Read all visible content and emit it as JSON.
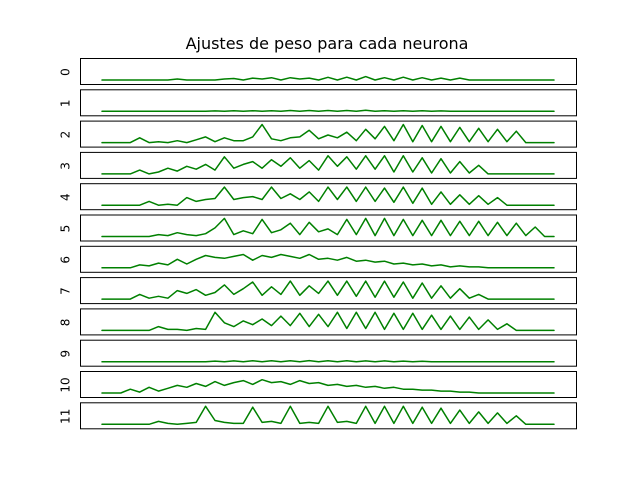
{
  "chart_data": {
    "type": "line",
    "title": "Ajustes de peso para cada neurona",
    "xlabel": "",
    "ylabel": "",
    "x_ticks_shown": false,
    "y_ticks_shown": false,
    "grid": false,
    "legend": "none",
    "line_color": "#008000",
    "x_domain": [
      0,
      1
    ],
    "panels": [
      {
        "label": "0",
        "values": [
          0.0,
          0.0,
          0.0,
          0.0,
          0.0,
          0.0,
          0.0,
          0.0,
          0.05,
          0.0,
          0.0,
          0.0,
          0.0,
          0.05,
          0.08,
          0.0,
          0.1,
          0.05,
          0.12,
          0.0,
          0.12,
          0.05,
          0.1,
          0.0,
          0.14,
          0.0,
          0.15,
          0.0,
          0.18,
          0.0,
          0.12,
          0.0,
          0.15,
          0.0,
          0.12,
          0.0,
          0.1,
          0.0,
          0.1,
          0.0,
          0.0,
          0.0,
          0.0,
          0.0,
          0.0,
          0.0,
          0.0,
          0.0,
          0.0
        ]
      },
      {
        "label": "1",
        "values": [
          0.0,
          0.0,
          0.0,
          0.0,
          0.0,
          0.0,
          0.0,
          0.0,
          0.0,
          0.0,
          0.0,
          0.0,
          0.02,
          0.0,
          0.03,
          0.0,
          0.03,
          0.0,
          0.03,
          0.0,
          0.04,
          0.0,
          0.04,
          0.0,
          0.04,
          0.0,
          0.04,
          0.0,
          0.05,
          0.0,
          0.03,
          0.0,
          0.03,
          0.0,
          0.03,
          0.0,
          0.02,
          0.0,
          0.0,
          0.0,
          0.0,
          0.0,
          0.0,
          0.0,
          0.0,
          0.0,
          0.0,
          0.0,
          0.0
        ]
      },
      {
        "label": "2",
        "values": [
          0.0,
          0.0,
          0.0,
          0.0,
          0.25,
          0.0,
          0.05,
          0.0,
          0.1,
          0.0,
          0.15,
          0.3,
          0.05,
          0.25,
          0.1,
          0.1,
          0.3,
          0.95,
          0.2,
          0.1,
          0.25,
          0.3,
          0.65,
          0.2,
          0.4,
          0.25,
          0.55,
          0.1,
          0.7,
          0.2,
          0.85,
          0.1,
          0.95,
          0.05,
          0.9,
          0.05,
          0.85,
          0.05,
          0.8,
          0.05,
          0.75,
          0.05,
          0.7,
          0.05,
          0.6,
          0.0,
          0.0,
          0.0,
          0.0
        ]
      },
      {
        "label": "3",
        "values": [
          0.0,
          0.0,
          0.0,
          0.0,
          0.2,
          0.0,
          0.1,
          0.3,
          0.15,
          0.4,
          0.25,
          0.5,
          0.2,
          0.9,
          0.3,
          0.5,
          0.65,
          0.3,
          0.75,
          0.4,
          0.85,
          0.3,
          0.7,
          0.2,
          0.95,
          0.4,
          0.9,
          0.25,
          0.95,
          0.25,
          0.95,
          0.1,
          0.95,
          0.1,
          0.85,
          0.05,
          0.8,
          0.05,
          0.65,
          0.05,
          0.45,
          0.0,
          0.0,
          0.0,
          0.0,
          0.0,
          0.0,
          0.0,
          0.0
        ]
      },
      {
        "label": "4",
        "values": [
          0.0,
          0.0,
          0.0,
          0.0,
          0.0,
          0.2,
          0.0,
          0.05,
          0.0,
          0.4,
          0.2,
          0.3,
          0.35,
          0.95,
          0.3,
          0.4,
          0.45,
          0.3,
          0.95,
          0.35,
          0.6,
          0.3,
          0.7,
          0.2,
          0.95,
          0.3,
          0.95,
          0.2,
          0.95,
          0.2,
          0.9,
          0.15,
          0.95,
          0.1,
          0.9,
          0.05,
          0.7,
          0.05,
          0.55,
          0.05,
          0.5,
          0.05,
          0.4,
          0.0,
          0.0,
          0.0,
          0.0,
          0.0,
          0.0
        ]
      },
      {
        "label": "5",
        "values": [
          0.0,
          0.0,
          0.0,
          0.0,
          0.0,
          0.0,
          0.1,
          0.05,
          0.2,
          0.1,
          0.05,
          0.15,
          0.45,
          0.95,
          0.1,
          0.3,
          0.15,
          0.9,
          0.2,
          0.35,
          0.7,
          0.1,
          0.75,
          0.25,
          0.4,
          0.1,
          0.9,
          0.1,
          0.95,
          0.05,
          0.95,
          0.05,
          0.9,
          0.05,
          0.85,
          0.05,
          0.85,
          0.05,
          0.8,
          0.05,
          0.8,
          0.05,
          0.75,
          0.05,
          0.7,
          0.05,
          0.5,
          0.0,
          0.0
        ]
      },
      {
        "label": "6",
        "values": [
          0.0,
          0.0,
          0.0,
          0.0,
          0.15,
          0.1,
          0.25,
          0.15,
          0.45,
          0.2,
          0.45,
          0.65,
          0.55,
          0.5,
          0.6,
          0.7,
          0.4,
          0.65,
          0.55,
          0.7,
          0.6,
          0.5,
          0.7,
          0.45,
          0.5,
          0.4,
          0.55,
          0.35,
          0.4,
          0.3,
          0.35,
          0.2,
          0.25,
          0.15,
          0.2,
          0.1,
          0.15,
          0.05,
          0.1,
          0.05,
          0.05,
          0.0,
          0.0,
          0.0,
          0.0,
          0.0,
          0.0,
          0.0,
          0.0
        ]
      },
      {
        "label": "7",
        "values": [
          0.0,
          0.0,
          0.0,
          0.0,
          0.25,
          0.05,
          0.15,
          0.05,
          0.45,
          0.3,
          0.5,
          0.2,
          0.35,
          0.75,
          0.25,
          0.55,
          0.9,
          0.2,
          0.65,
          0.25,
          0.95,
          0.2,
          0.7,
          0.3,
          0.95,
          0.2,
          0.95,
          0.15,
          0.95,
          0.1,
          0.95,
          0.1,
          0.9,
          0.05,
          0.85,
          0.05,
          0.7,
          0.05,
          0.55,
          0.05,
          0.25,
          0.0,
          0.0,
          0.0,
          0.0,
          0.0,
          0.0,
          0.0,
          0.0
        ]
      },
      {
        "label": "8",
        "values": [
          0.0,
          0.0,
          0.0,
          0.0,
          0.0,
          0.0,
          0.2,
          0.05,
          0.05,
          0.0,
          0.1,
          0.05,
          0.95,
          0.4,
          0.2,
          0.5,
          0.3,
          0.6,
          0.25,
          0.75,
          0.25,
          0.9,
          0.2,
          0.85,
          0.2,
          0.95,
          0.1,
          0.95,
          0.1,
          0.95,
          0.05,
          0.9,
          0.05,
          0.9,
          0.05,
          0.8,
          0.05,
          0.75,
          0.05,
          0.7,
          0.05,
          0.55,
          0.05,
          0.35,
          0.0,
          0.0,
          0.0,
          0.0,
          0.0
        ]
      },
      {
        "label": "9",
        "values": [
          0.0,
          0.0,
          0.0,
          0.0,
          0.0,
          0.0,
          0.0,
          0.0,
          0.0,
          0.0,
          0.0,
          0.0,
          0.03,
          0.0,
          0.04,
          0.0,
          0.05,
          0.0,
          0.05,
          0.0,
          0.05,
          0.0,
          0.06,
          0.0,
          0.05,
          0.0,
          0.05,
          0.0,
          0.04,
          0.0,
          0.04,
          0.0,
          0.03,
          0.0,
          0.02,
          0.0,
          0.0,
          0.0,
          0.0,
          0.0,
          0.0,
          0.0,
          0.0,
          0.0,
          0.0,
          0.0,
          0.0,
          0.0,
          0.0
        ]
      },
      {
        "label": "10",
        "values": [
          0.0,
          0.0,
          0.0,
          0.2,
          0.05,
          0.3,
          0.1,
          0.25,
          0.4,
          0.3,
          0.5,
          0.35,
          0.6,
          0.4,
          0.55,
          0.65,
          0.45,
          0.7,
          0.55,
          0.6,
          0.45,
          0.65,
          0.5,
          0.55,
          0.4,
          0.45,
          0.35,
          0.4,
          0.3,
          0.35,
          0.25,
          0.3,
          0.2,
          0.2,
          0.15,
          0.15,
          0.1,
          0.1,
          0.05,
          0.05,
          0.0,
          0.0,
          0.0,
          0.0,
          0.0,
          0.0,
          0.0,
          0.0,
          0.0
        ]
      },
      {
        "label": "11",
        "values": [
          0.0,
          0.0,
          0.0,
          0.0,
          0.0,
          0.0,
          0.15,
          0.05,
          0.0,
          0.05,
          0.1,
          0.95,
          0.2,
          0.1,
          0.05,
          0.05,
          0.9,
          0.1,
          0.15,
          0.05,
          0.95,
          0.05,
          0.1,
          0.05,
          0.95,
          0.1,
          0.15,
          0.05,
          0.95,
          0.05,
          0.95,
          0.05,
          0.95,
          0.05,
          0.9,
          0.05,
          0.85,
          0.05,
          0.75,
          0.05,
          0.65,
          0.05,
          0.6,
          0.05,
          0.45,
          0.0,
          0.0,
          0.0,
          0.0
        ]
      }
    ]
  }
}
